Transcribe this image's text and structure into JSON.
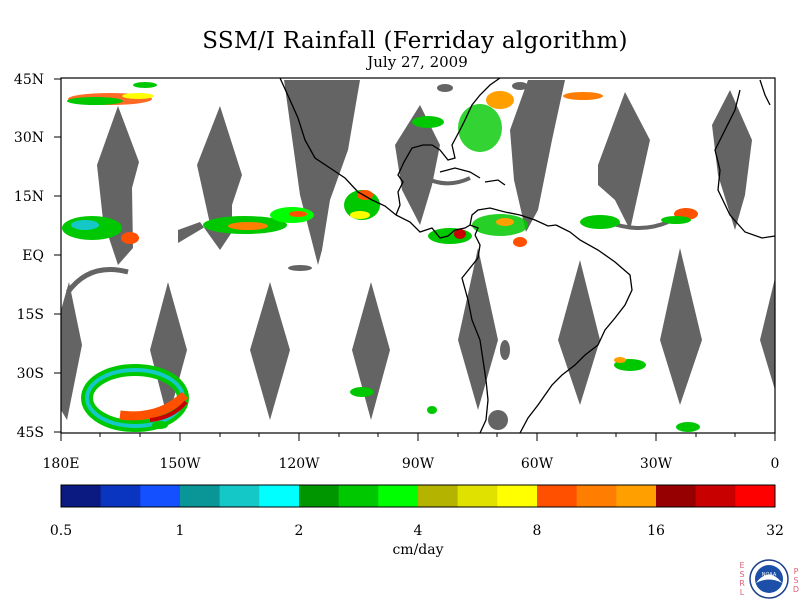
{
  "title": "SSM/I Rainfall (Ferriday algorithm)",
  "subtitle": "July 27, 2009",
  "map": {
    "lat_labels": [
      "45N",
      "30N",
      "15N",
      "EQ",
      "15S",
      "30S",
      "45S"
    ],
    "lon_labels": [
      "180E",
      "150W",
      "120W",
      "90W",
      "60W",
      "30W",
      "0"
    ],
    "lat_range": [
      -45,
      45
    ],
    "lon_range": [
      -180,
      0
    ],
    "colors": {
      "land_outline": "#000000",
      "swath_gap": "#646464",
      "background": "#ffffff"
    }
  },
  "colorbar": {
    "colors": [
      "#0a1a80",
      "#0a35c0",
      "#1450ff",
      "#0a9696",
      "#14c8c8",
      "#00ffff",
      "#009600",
      "#00c800",
      "#00ff00",
      "#b4b400",
      "#e1e100",
      "#ffff00",
      "#ff5000",
      "#ff7d00",
      "#ffa000",
      "#960000",
      "#c80000",
      "#ff0000"
    ],
    "tick_labels": [
      "0.5",
      "1",
      "2",
      "4",
      "8",
      "16",
      "32"
    ],
    "unit_label": "cm/day"
  },
  "logo": {
    "left_letters": "ESRL",
    "right_letters": "PSD",
    "center_text": "NOAA"
  }
}
